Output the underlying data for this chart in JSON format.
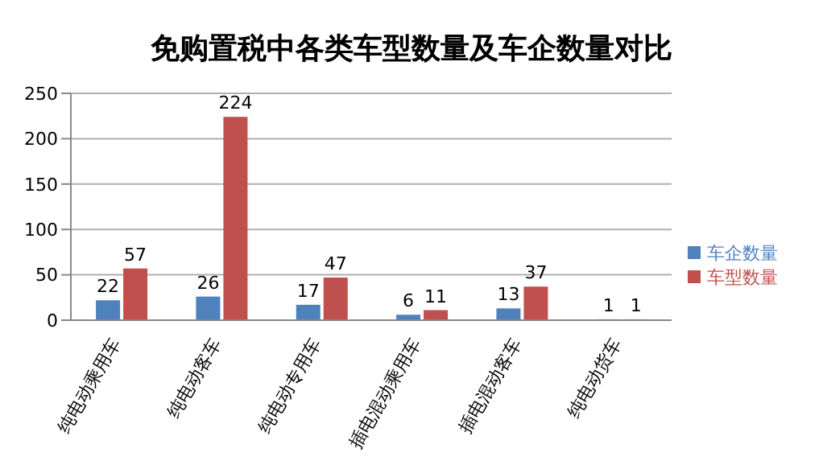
{
  "chart_data": {
    "type": "bar",
    "title": "免购置税中各类车型数量及车企数量对比",
    "categories": [
      "纯电动乘用车",
      "纯电动客车",
      "纯电动专用车",
      "插电混动乘用车",
      "插电混动客车",
      "纯电动货车"
    ],
    "series": [
      {
        "name": "车企数量",
        "color": "#4f81bd",
        "values": [
          22,
          26,
          17,
          6,
          13,
          1
        ]
      },
      {
        "name": "车型数量",
        "color": "#c0504d",
        "values": [
          57,
          224,
          47,
          11,
          37,
          1
        ]
      }
    ],
    "ylim": [
      0,
      250
    ],
    "yticks": [
      0,
      50,
      100,
      150,
      200,
      250
    ],
    "grid": "y",
    "legend": "right",
    "data_labels": true
  }
}
